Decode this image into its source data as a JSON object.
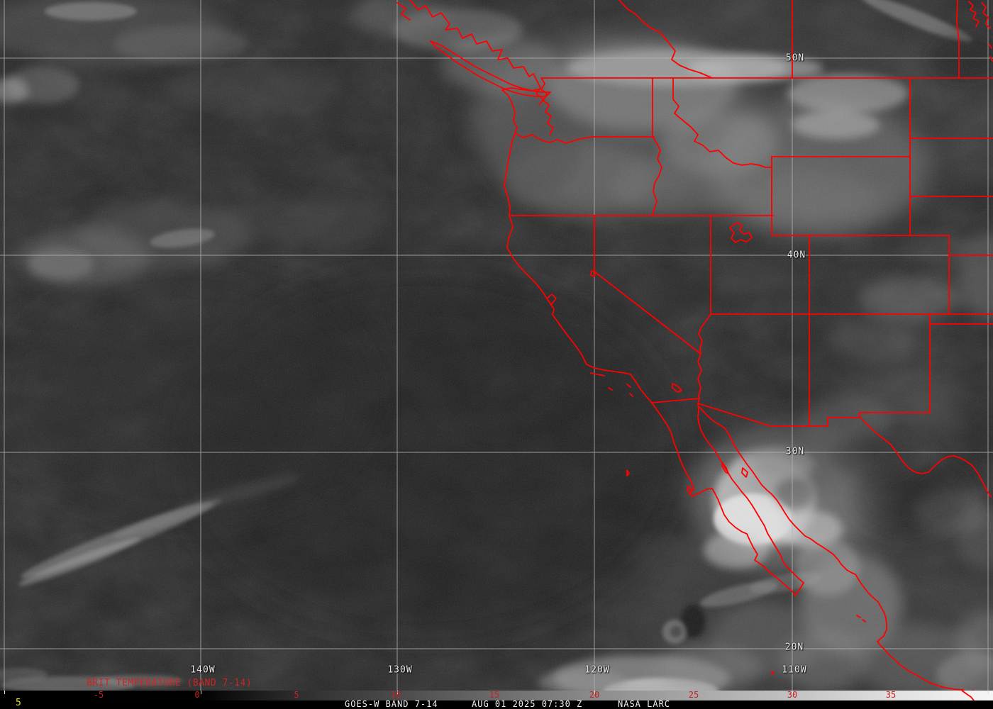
{
  "product_title": {
    "text": "BRIT TEMPERATURE (BAND 7-14)"
  },
  "grid_labels": {
    "latitudes": [
      {
        "label": "50N"
      },
      {
        "label": "40N"
      },
      {
        "label": "30N"
      },
      {
        "label": "20N"
      }
    ],
    "longitudes": [
      {
        "label": "140W"
      },
      {
        "label": "130W"
      },
      {
        "label": "120W"
      },
      {
        "label": "110W"
      }
    ]
  },
  "colorbar": {
    "ticks": [
      "-5",
      "0",
      "5",
      "10",
      "15",
      "20",
      "25",
      "30",
      "35"
    ]
  },
  "status_bar": {
    "scale_value": "5",
    "product": "GOES-W BAND 7-14",
    "timestamp": "AUG 01 2025 07:30 Z",
    "source": "NASA LARC"
  },
  "colors": {
    "map_outline": "#ff0000",
    "grid_line": "#b4b4b4",
    "colorbar_tick_text": "#c92222",
    "title_text": "#d02424",
    "scale_value_text": "#e8e412",
    "status_text": "#f2f2f2"
  }
}
